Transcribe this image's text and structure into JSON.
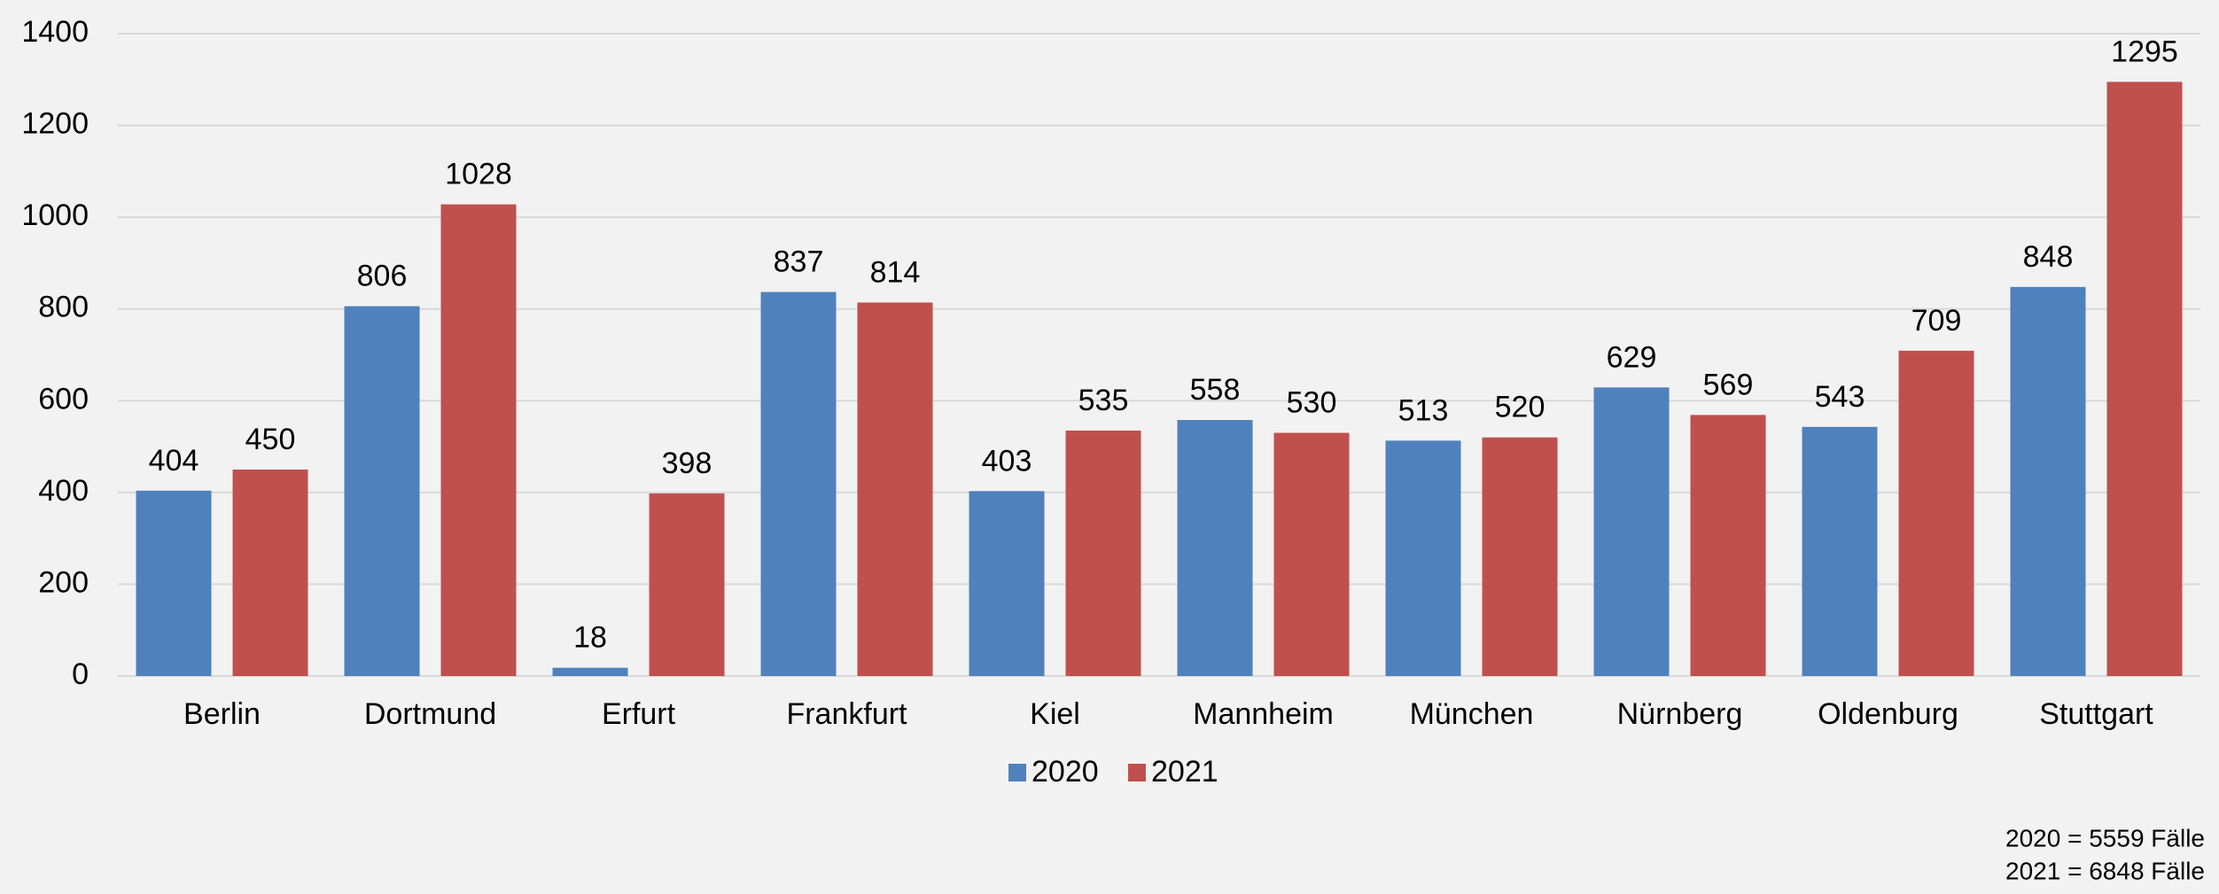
{
  "chart_data": {
    "type": "bar",
    "categories": [
      "Berlin",
      "Dortmund",
      "Erfurt",
      "Frankfurt",
      "Kiel",
      "Mannheim",
      "München",
      "Nürnberg",
      "Oldenburg",
      "Stuttgart"
    ],
    "series": [
      {
        "name": "2020",
        "color": "#4f81bd",
        "values": [
          404,
          806,
          18,
          837,
          403,
          558,
          513,
          629,
          543,
          848
        ]
      },
      {
        "name": "2021",
        "color": "#c0504d",
        "values": [
          450,
          1028,
          398,
          814,
          535,
          530,
          520,
          569,
          709,
          1295
        ]
      }
    ],
    "ylim": [
      0,
      1400
    ],
    "yticks": [
      0,
      200,
      400,
      600,
      800,
      1000,
      1200,
      1400
    ],
    "grid": true,
    "notes": [
      "2020 = 5559 Fälle",
      "2021 = 6848 Fälle"
    ]
  }
}
